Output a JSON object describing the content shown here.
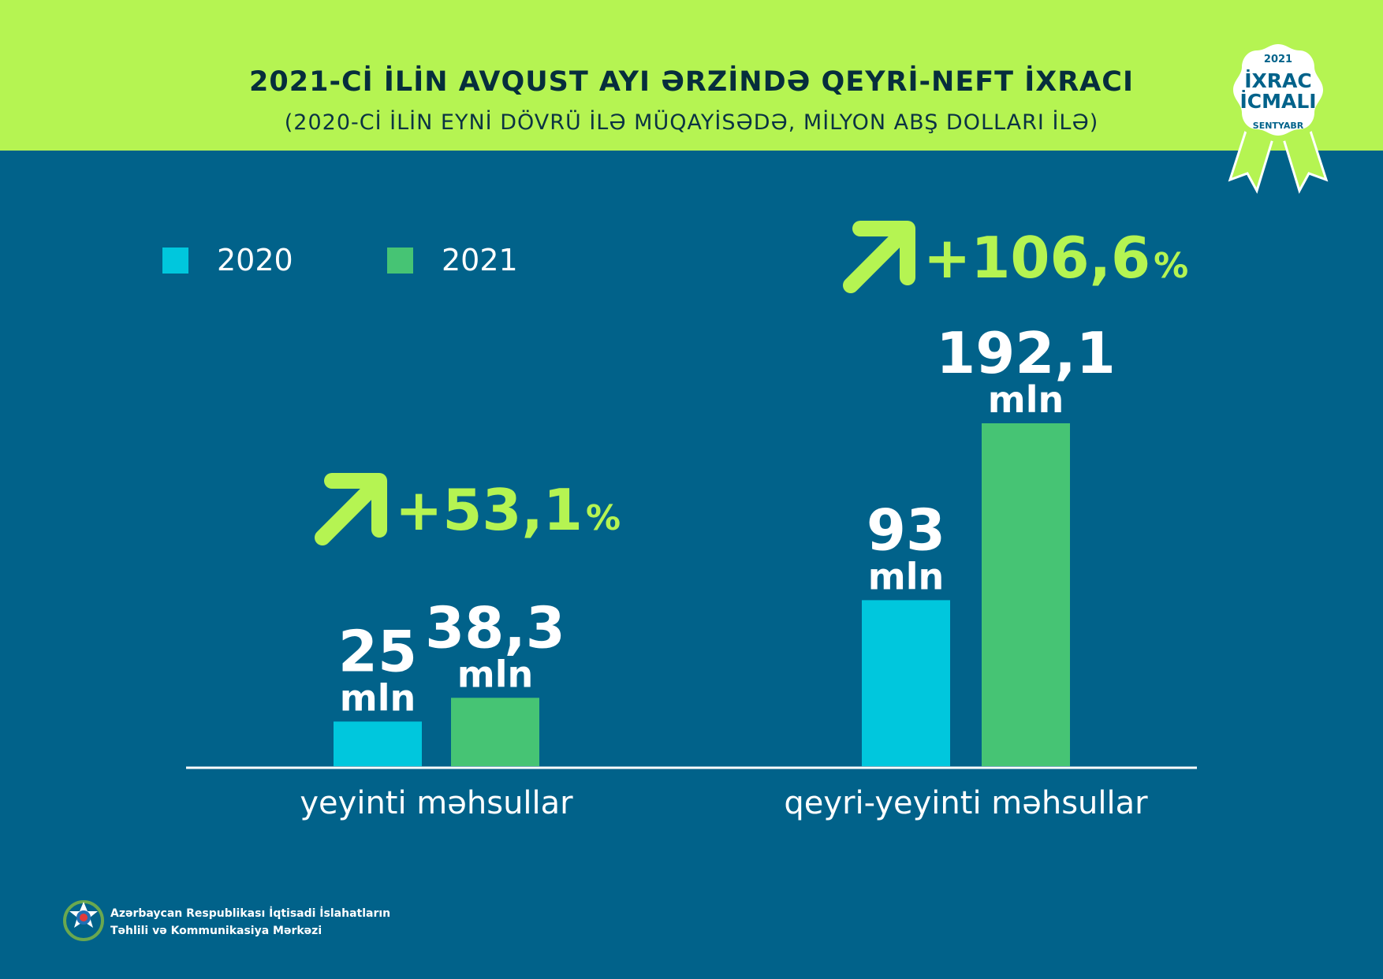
{
  "header": {
    "title": "2021-Cİ İLİN AVQUST AYI ƏRZİNDƏ QEYRİ-NEFT İXRACI",
    "subtitle": "(2020-Cİ İLİN EYNİ DÖVRÜ İLƏ MÜQAYİSƏDƏ, MİLYON ABŞ DOLLARI İLƏ)"
  },
  "badge": {
    "year": "2021",
    "line1": "İXRAC",
    "line2": "İCMALI",
    "month": "SENTYABR"
  },
  "colors": {
    "background": "#01628a",
    "header_bar": "#b5f452",
    "series_2020": "#00c7dd",
    "series_2021": "#46c474",
    "accent": "#b5f452"
  },
  "chart_data": {
    "type": "bar",
    "categories": [
      "yeyinti məhsullar",
      "qeyri-yeyinti məhsullar"
    ],
    "series": [
      {
        "name": "2020",
        "values": [
          25,
          93
        ],
        "labels": [
          "25",
          "93"
        ],
        "unit": "mln"
      },
      {
        "name": "2021",
        "values": [
          38.3,
          192.1
        ],
        "labels": [
          "38,3",
          "192,1"
        ],
        "unit": "mln"
      }
    ],
    "changes": [
      "+53,1",
      "+106,6"
    ],
    "change_unit": "%",
    "ylim": [
      0,
      192.1
    ],
    "grid": false,
    "legend": "top-left"
  },
  "footer": {
    "org_line1": "Azərbaycan Respublikası İqtisadi İslahatların",
    "org_line2": "Təhlili və Kommunikasiya Mərkəzi"
  }
}
